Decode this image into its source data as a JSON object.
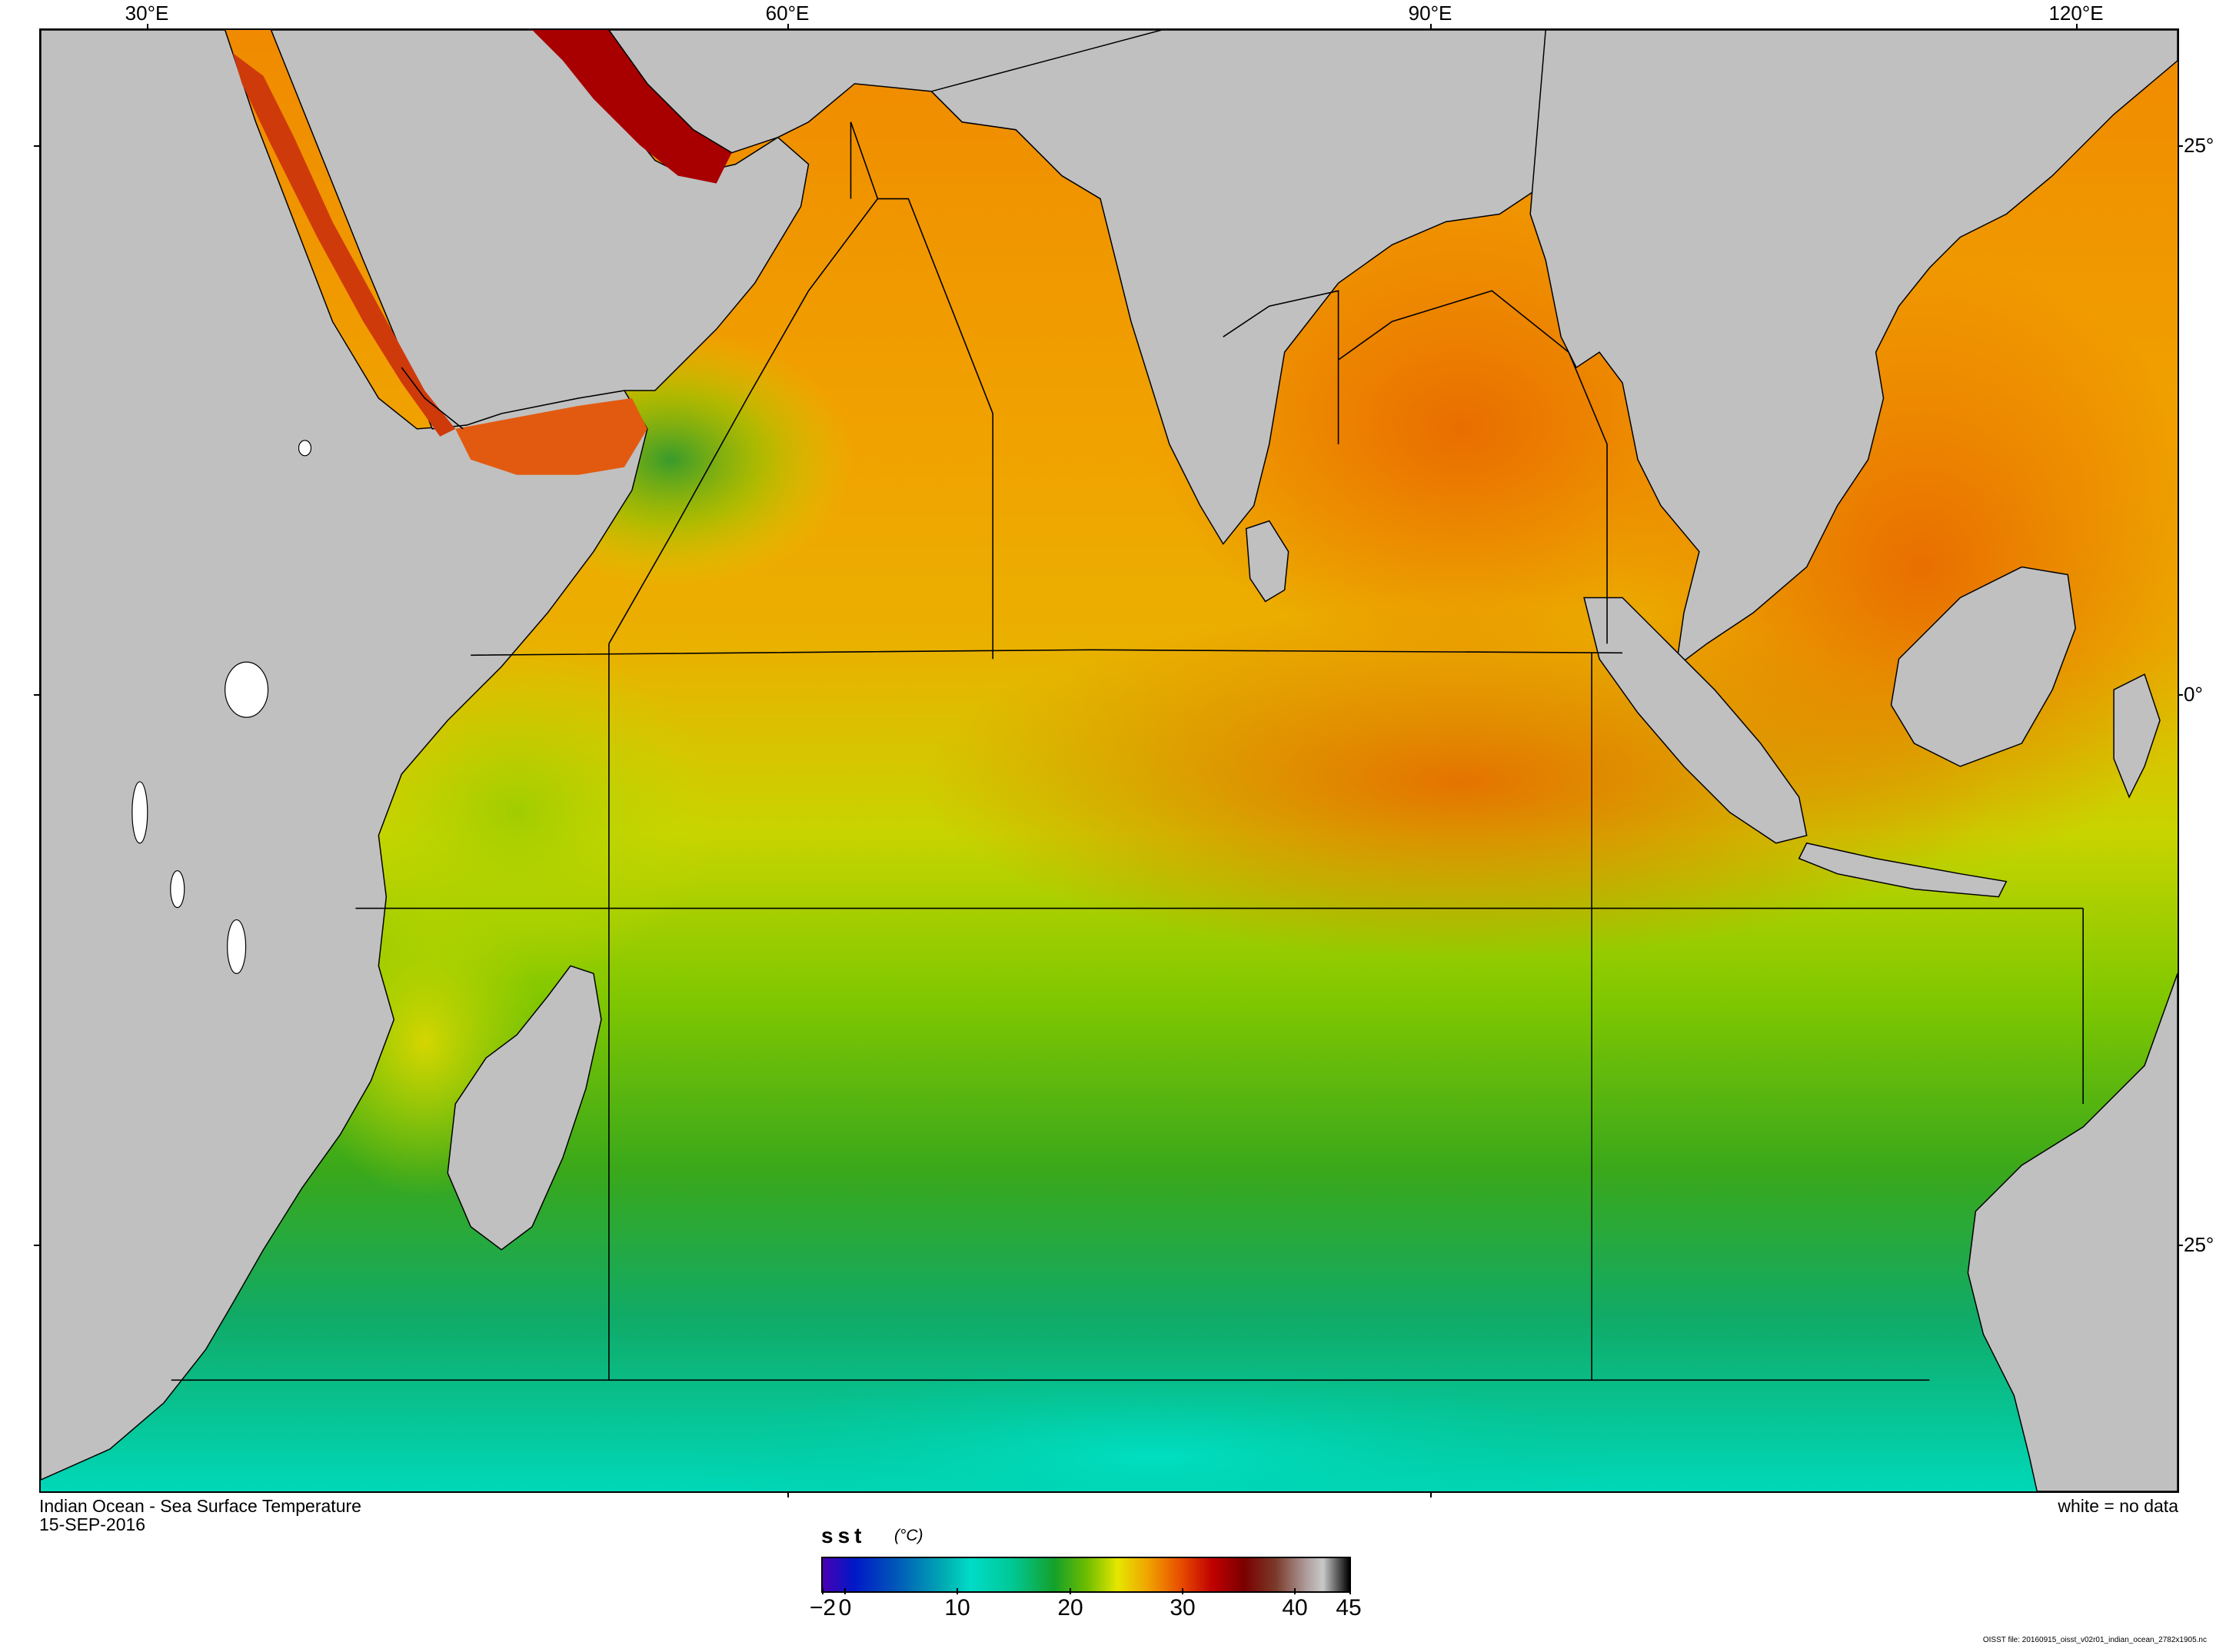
{
  "map": {
    "title": "Indian Ocean - Sea Surface Temperature",
    "date": "15-SEP-2016",
    "note": "white = no data",
    "lon_ticks": [
      "30°E",
      "60°E",
      "90°E",
      "120°E"
    ],
    "lat_ticks": [
      "25°",
      "0°",
      "25°"
    ],
    "colors": {
      "land": "#c0c0c0",
      "sst_warmest": "#a00000",
      "sst_warm": "#e65a00",
      "sst_mid": "#f0a000",
      "sst_moderate": "#d8dc00",
      "sst_cool": "#4aaa14",
      "sst_cold": "#00c8a0"
    }
  },
  "colorbar": {
    "variable": "sst",
    "units": "(°C)",
    "tick_labels": [
      "−2",
      "0",
      "10",
      "20",
      "30",
      "40",
      "45"
    ],
    "range": [
      -2,
      45
    ]
  },
  "footer": {
    "file": "OISST file: 20160915_oisst_v02r01_indian_ocean_2782x1905.nc"
  }
}
